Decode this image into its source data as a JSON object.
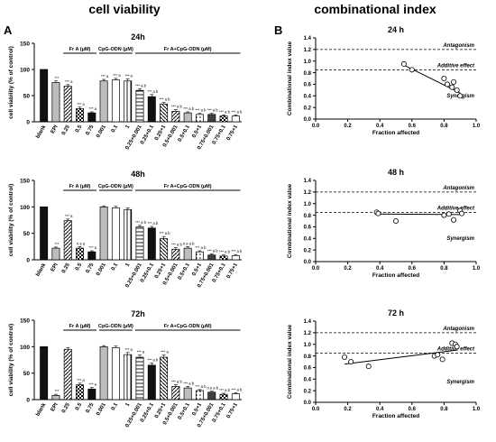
{
  "headings": {
    "left": "cell viability",
    "right": "combinational index",
    "panel_a": "A",
    "panel_b": "B"
  },
  "colors": {
    "text": "#000000",
    "bar_black": "#111111",
    "bar_gray": "#bdbdbd",
    "bar_white": "#ffffff",
    "bar_dark": "#404040"
  },
  "chart_data": [
    {
      "type": "bar",
      "title": "24h",
      "ylabel": "cell viability (% of control)",
      "ylim": [
        0,
        150
      ],
      "yticks": [
        "0",
        "50",
        "100",
        "150"
      ],
      "group_labels": [
        "Fr A (μM)",
        "CpG-ODN (μM)",
        "Fr A+CpG-ODN (μM)"
      ],
      "categories": [
        "blank",
        "EPI",
        "0.25",
        "0.5",
        "0.75",
        "0.001",
        "0.1",
        "1",
        "0.25+0.001",
        "0.25+0.1",
        "0.25+1",
        "0.5+0.001",
        "0.5+0.1",
        "0.5+1",
        "0.75+0.001",
        "0.75+0.1",
        "0.75+1"
      ],
      "values": [
        100,
        75,
        68,
        25,
        17,
        78,
        80,
        78,
        60,
        48,
        34,
        20,
        17,
        14,
        14,
        11,
        11
      ],
      "errors": [
        0,
        3,
        3,
        3,
        2,
        3,
        3,
        4,
        3,
        4,
        3,
        3,
        2,
        2,
        2,
        2,
        2
      ],
      "annotations": [
        "",
        "***",
        "*** a",
        "*** a",
        "*** a",
        "*** a",
        "*** a",
        "*** a",
        "*** a b",
        "*** a b",
        "*** a b",
        "*** a b",
        "*** a b",
        "*** a b",
        "*** a b",
        "*** a b",
        "*** a b"
      ]
    },
    {
      "type": "bar",
      "title": "48h",
      "ylabel": "cell viability (% of control)",
      "ylim": [
        0,
        150
      ],
      "yticks": [
        "0",
        "50",
        "100",
        "150"
      ],
      "group_labels": [
        "Fr A (μM)",
        "CpG-ODN (μM)",
        "Fr A+CpG-ODN (μM)"
      ],
      "categories": [
        "blank",
        "EPI",
        "0.25",
        "0.5",
        "0.75",
        "0.001",
        "0.1",
        "1",
        "0.25+0.001",
        "0.25+0.1",
        "0.25+1",
        "0.5+0.001",
        "0.5+0.1",
        "0.5+1",
        "0.75+0.001",
        "0.75+0.1",
        "0.75+1"
      ],
      "values": [
        100,
        22,
        74,
        22,
        15,
        100,
        98,
        95,
        62,
        60,
        40,
        20,
        22,
        15,
        9,
        7,
        8
      ],
      "errors": [
        0,
        2,
        3,
        3,
        2,
        2,
        3,
        3,
        3,
        3,
        4,
        3,
        3,
        2,
        2,
        2,
        2
      ],
      "annotations": [
        "",
        "***",
        "*** a",
        "n.s a",
        "*** a",
        "",
        "",
        "",
        "*** a b",
        "*** a b",
        "*** a b",
        "*** a b",
        "n.s a b",
        "*** a b",
        "*** a b",
        "*** a b",
        "*** a b"
      ]
    },
    {
      "type": "bar",
      "title": "72h",
      "ylabel": "cell viability (% of control)",
      "ylim": [
        0,
        150
      ],
      "yticks": [
        "0",
        "50",
        "100",
        "150"
      ],
      "group_labels": [
        "Fr A (μM)",
        "CpG-ODN (μM)",
        "Fr A+CpG-ODN (μM)"
      ],
      "categories": [
        "blank",
        "EPI",
        "0.25",
        "0.5",
        "0.75",
        "0.001",
        "0.1",
        "1",
        "0.25+0.001",
        "0.25+0.1",
        "0.25+1",
        "0.5+0.001",
        "0.5+0.1",
        "0.5+1",
        "0.75+0.001",
        "0.75+0.1",
        "0.75+1"
      ],
      "values": [
        100,
        8,
        95,
        28,
        20,
        100,
        98,
        85,
        80,
        65,
        80,
        25,
        22,
        17,
        14,
        10,
        11
      ],
      "errors": [
        0,
        2,
        3,
        3,
        3,
        2,
        3,
        4,
        4,
        4,
        4,
        3,
        3,
        2,
        2,
        2,
        2
      ],
      "annotations": [
        "",
        "***",
        "",
        "*** a",
        "*** a",
        "",
        "",
        "*** a",
        "*** a",
        "*** a b",
        "*** a",
        "*** a b",
        "*** a b",
        "*** a b",
        "n.s a b",
        "*** a b",
        "*** a b"
      ]
    },
    {
      "type": "scatter",
      "title": "24 h",
      "xlabel": "Fraction affected",
      "ylabel": "Combinational index value",
      "xlim": [
        0,
        1.0
      ],
      "ylim": [
        0,
        1.4
      ],
      "xticks": [
        "0.0",
        "0.2",
        "0.4",
        "0.6",
        "0.8",
        "1.0"
      ],
      "yticks": [
        "0.0",
        "0.2",
        "0.4",
        "0.6",
        "0.8",
        "1.0",
        "1.2",
        "1.4"
      ],
      "reference_lines": [
        1.2,
        0.85
      ],
      "region_labels": [
        "Antagonism",
        "Additive effect",
        "Synergism"
      ],
      "points": [
        [
          0.55,
          0.95
        ],
        [
          0.6,
          0.85
        ],
        [
          0.8,
          0.7
        ],
        [
          0.82,
          0.6
        ],
        [
          0.86,
          0.64
        ],
        [
          0.85,
          0.55
        ],
        [
          0.88,
          0.5
        ],
        [
          0.9,
          0.4
        ]
      ],
      "fit_line": [
        [
          0.55,
          0.93
        ],
        [
          0.9,
          0.45
        ]
      ]
    },
    {
      "type": "scatter",
      "title": "48 h",
      "xlabel": "Fraction affected",
      "ylabel": "Combinational index value",
      "xlim": [
        0,
        1.0
      ],
      "ylim": [
        0,
        1.4
      ],
      "xticks": [
        "0.0",
        "0.2",
        "0.4",
        "0.6",
        "0.8",
        "1.0"
      ],
      "yticks": [
        "0.0",
        "0.2",
        "0.4",
        "0.6",
        "0.8",
        "1.0",
        "1.2",
        "1.4"
      ],
      "reference_lines": [
        1.2,
        0.85
      ],
      "region_labels": [
        "Antagonism",
        "Additive effect",
        "Synergism"
      ],
      "points": [
        [
          0.38,
          0.85
        ],
        [
          0.39,
          0.83
        ],
        [
          0.5,
          0.7
        ],
        [
          0.8,
          0.8
        ],
        [
          0.83,
          0.82
        ],
        [
          0.86,
          0.72
        ],
        [
          0.9,
          0.88
        ],
        [
          0.91,
          0.83
        ]
      ],
      "fit_line": [
        [
          0.38,
          0.82
        ],
        [
          0.91,
          0.81
        ]
      ]
    },
    {
      "type": "scatter",
      "title": "72 h",
      "xlabel": "Fraction affected",
      "ylabel": "Combinational index value",
      "xlim": [
        0,
        1.0
      ],
      "ylim": [
        0,
        1.4
      ],
      "xticks": [
        "0.0",
        "0.2",
        "0.4",
        "0.6",
        "0.8",
        "1.0"
      ],
      "yticks": [
        "0.0",
        "0.2",
        "0.4",
        "0.6",
        "0.8",
        "1.0",
        "1.2",
        "1.4"
      ],
      "reference_lines": [
        1.2,
        0.85
      ],
      "region_labels": [
        "Antagonism",
        "Additive effect",
        "Synergism"
      ],
      "points": [
        [
          0.18,
          0.78
        ],
        [
          0.22,
          0.7
        ],
        [
          0.33,
          0.62
        ],
        [
          0.74,
          0.8
        ],
        [
          0.76,
          0.82
        ],
        [
          0.79,
          0.74
        ],
        [
          0.85,
          1.02
        ],
        [
          0.87,
          1.0
        ],
        [
          0.88,
          0.96
        ]
      ],
      "fit_line": [
        [
          0.18,
          0.66
        ],
        [
          0.88,
          0.9
        ]
      ]
    }
  ]
}
